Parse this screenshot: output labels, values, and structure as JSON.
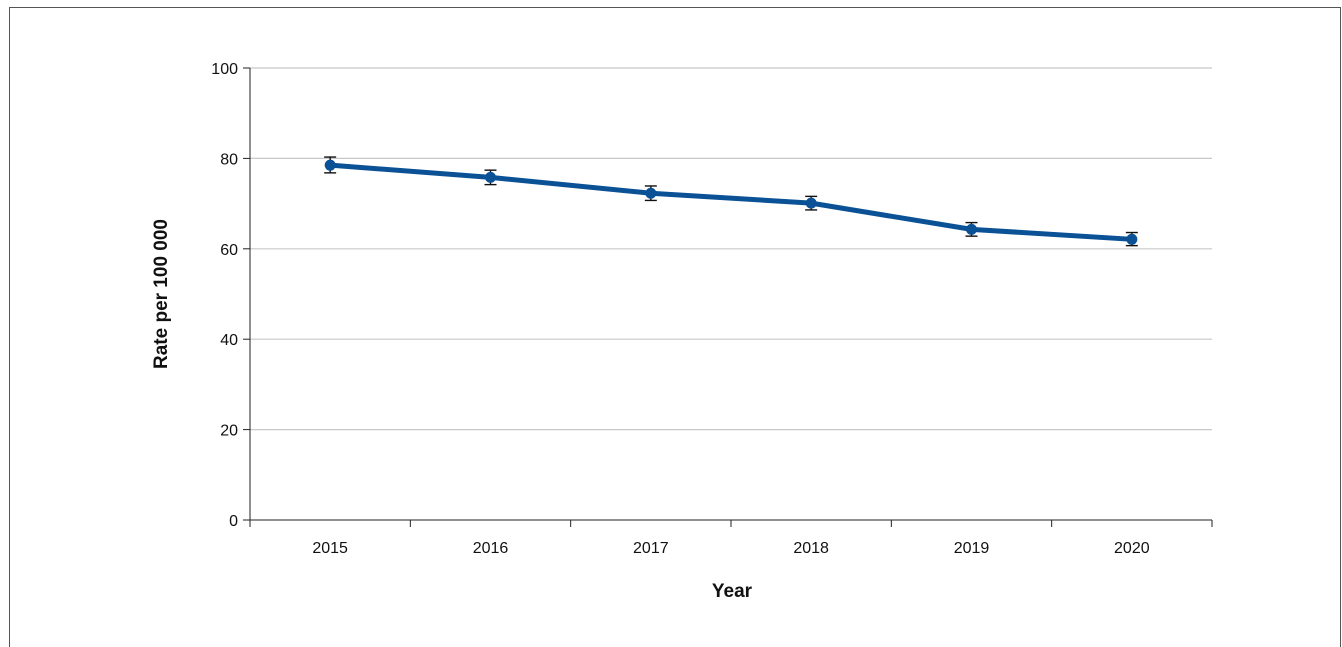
{
  "chart_data": {
    "type": "line",
    "title": "",
    "xlabel": "Year",
    "ylabel": "Rate per 100 000",
    "categories": [
      "2015",
      "2016",
      "2017",
      "2018",
      "2019",
      "2020"
    ],
    "series": [
      {
        "values": [
          78.5,
          75.8,
          72.3,
          70.1,
          64.3,
          62.1
        ],
        "error_low": [
          76.8,
          74.2,
          70.7,
          68.6,
          62.8,
          60.7
        ],
        "error_high": [
          80.3,
          77.4,
          73.9,
          71.6,
          65.8,
          63.6
        ],
        "color": "#0a5196"
      }
    ],
    "ylim": [
      0,
      100
    ],
    "yticks": [
      0,
      20,
      40,
      60,
      80,
      100
    ],
    "grid": true
  }
}
